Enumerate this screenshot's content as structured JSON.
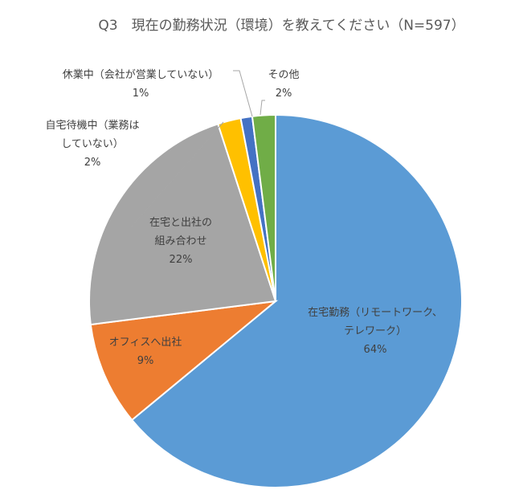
{
  "chart_data": {
    "type": "pie",
    "title": "Q3　現在の勤務状況（環境）を教えてください（N=597）",
    "start_angle_deg": 0,
    "direction": "clockwise",
    "categories": [
      "在宅勤務（リモートワーク、テレワーク）",
      "オフィスへ出社",
      "在宅と出社の組み合わせ",
      "自宅待機中（業務はしていない）",
      "休業中（会社が営業していない）",
      "その他"
    ],
    "values": [
      64,
      9,
      22,
      2,
      1,
      2
    ],
    "colors": [
      "#5B9BD5",
      "#ED7D31",
      "#A5A5A5",
      "#FFC000",
      "#4472C4",
      "#70AD47"
    ],
    "legend": "none",
    "data_labels": [
      {
        "lines": [
          "在宅勤務（リモートワーク、",
          "テレワーク）",
          "64%"
        ]
      },
      {
        "lines": [
          "オフィスへ出社",
          "9%"
        ]
      },
      {
        "lines": [
          "在宅と出社の",
          "組み合わせ",
          "22%"
        ]
      },
      {
        "lines": [
          "自宅待機中（業務は",
          "していない）",
          "2%"
        ]
      },
      {
        "lines": [
          "休業中（会社が営業していない）",
          "1%"
        ]
      },
      {
        "lines": [
          "その他",
          "2%"
        ]
      }
    ]
  }
}
